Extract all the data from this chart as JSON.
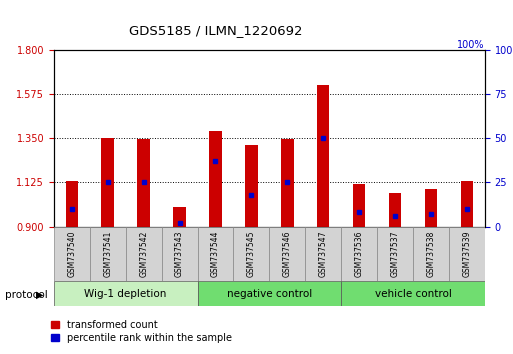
{
  "title": "GDS5185 / ILMN_1220692",
  "samples": [
    "GSM737540",
    "GSM737541",
    "GSM737542",
    "GSM737543",
    "GSM737544",
    "GSM737545",
    "GSM737546",
    "GSM737547",
    "GSM737536",
    "GSM737537",
    "GSM737538",
    "GSM737539"
  ],
  "transformed_count": [
    1.13,
    1.35,
    1.345,
    1.0,
    1.385,
    1.315,
    1.345,
    1.62,
    1.115,
    1.07,
    1.09,
    1.13
  ],
  "percentile_rank": [
    10,
    25,
    25,
    2,
    37,
    18,
    25,
    50,
    8,
    6,
    7,
    10
  ],
  "groups": [
    {
      "label": "Wig-1 depletion",
      "start": 0,
      "end": 4,
      "color": "#c8f0c0"
    },
    {
      "label": "negative control",
      "start": 4,
      "end": 8,
      "color": "#70dd70"
    },
    {
      "label": "vehicle control",
      "start": 8,
      "end": 12,
      "color": "#70dd70"
    }
  ],
  "ylim_left": [
    0.9,
    1.8
  ],
  "ylim_right": [
    0,
    100
  ],
  "yticks_left": [
    0.9,
    1.125,
    1.35,
    1.575,
    1.8
  ],
  "yticks_right": [
    0,
    25,
    50,
    75,
    100
  ],
  "bar_color": "#cc0000",
  "marker_color": "#0000cc",
  "bar_width": 0.35,
  "left_axis_color": "#cc0000",
  "right_axis_color": "#0000cc",
  "protocol_label": "protocol"
}
